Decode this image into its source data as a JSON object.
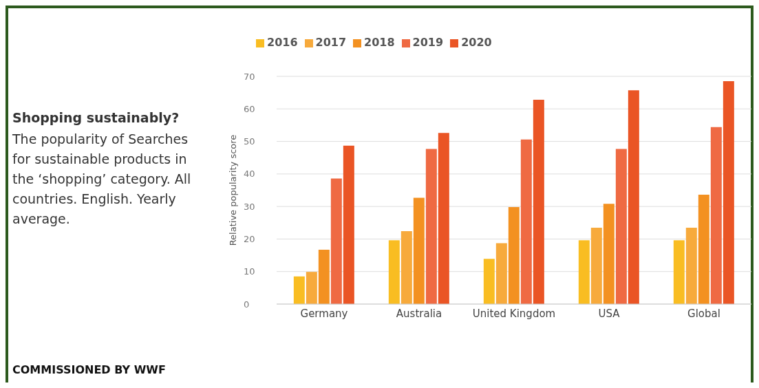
{
  "chart_data": {
    "type": "bar",
    "title": "Shopping sustainably?",
    "subtitle": "The popularity of Searches for sustainable products in the ‘shopping’ category. All countries. English. Yearly average.",
    "ylabel": "Relative popularity score",
    "annotations": [
      "COMMISSIONED BY WWF"
    ],
    "categories": [
      "Germany",
      "Australia",
      "United Kingdom",
      "USA",
      "Global"
    ],
    "series": [
      {
        "name": "2016",
        "color": "#f9bd22",
        "values": [
          8.5,
          19.6,
          13.9,
          19.6,
          19.6
        ]
      },
      {
        "name": "2017",
        "color": "#f7aa3c",
        "values": [
          9.9,
          22.4,
          18.7,
          23.5,
          23.5
        ]
      },
      {
        "name": "2018",
        "color": "#f39121",
        "values": [
          16.7,
          32.7,
          29.8,
          30.8,
          33.6
        ]
      },
      {
        "name": "2019",
        "color": "#ef6a43",
        "values": [
          38.6,
          47.7,
          50.6,
          47.7,
          54.4
        ]
      },
      {
        "name": "2020",
        "color": "#ea5525",
        "values": [
          48.7,
          52.6,
          62.8,
          65.7,
          68.5
        ]
      }
    ],
    "ylim": [
      0,
      70
    ],
    "yticks": [
      0,
      10,
      20,
      30,
      40,
      50,
      60,
      70
    ],
    "grid": "y",
    "legend": "top left"
  }
}
